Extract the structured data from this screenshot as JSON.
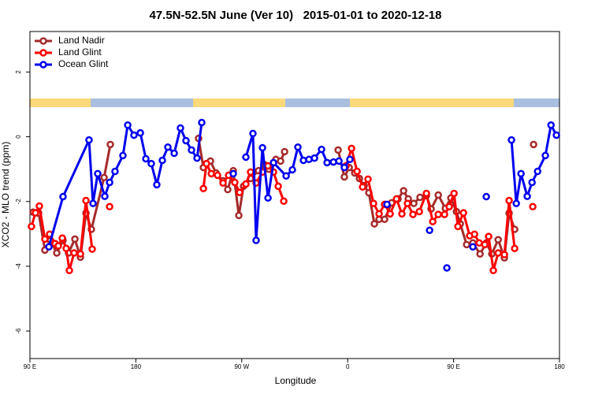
{
  "chart_data": {
    "type": "line",
    "title": "47.5N-52.5N June (Ver 10)   2015-01-01 to 2020-12-18",
    "x_label": "Longitude",
    "y_label": "XCO2 - MLO trend (ppm)",
    "xlim": [
      90,
      540
    ],
    "ylim": [
      -6.85,
      3.25
    ],
    "xticks": [
      {
        "value": 90,
        "label": "90 E"
      },
      180,
      {
        "value": 270,
        "label": "90 W"
      },
      {
        "value": 360,
        "label": "0"
      },
      {
        "value": 450,
        "label": "90 E"
      },
      {
        "value": 540,
        "label": "180"
      }
    ],
    "yticks": [
      -6,
      -4,
      -2,
      0,
      2
    ],
    "legend": "top-left",
    "series": [
      {
        "name": "Land Nadir",
        "color": "#a52a2a",
        "x": [
          92.7,
          97.4,
          102.7,
          107.4,
          112.8,
          118.1,
          122.8,
          128.2,
          132.9,
          137.6,
          142.2,
          153.0,
          158.3,
          null,
          233.3,
          237.4,
          243.4,
          248.1,
          254.1,
          258.1,
          262.8,
          267.5,
          271.5,
          277.5,
          284.2,
          289.6,
          292.9,
          299.0,
          303.0,
          306.4,
          null,
          351.9,
          357.2,
          361.3,
          366.0,
          370.0,
          374.0,
          378.0,
          382.7,
          386.7,
          391.4,
          397.4,
          402.8,
          407.5,
          411.5,
          416.2,
          421.5,
          426.9,
          430.9,
          437.0,
          443.0,
          447.7,
          452.4,
          455.7,
          461.1,
          466.4,
          472.5,
          477.8,
          482.5,
          487.9,
          493.2,
          497.2,
          501.9,
          null,
          518.0
        ],
        "values": [
          -2.33,
          -2.36,
          -3.5,
          -3.2,
          -3.59,
          -3.2,
          -3.59,
          -3.16,
          -3.72,
          -2.36,
          -2.86,
          -1.26,
          -0.24,
          null,
          -0.05,
          -0.95,
          -0.75,
          -1.12,
          -1.36,
          -1.63,
          -1.05,
          -2.43,
          -1.53,
          -1.29,
          -1.05,
          -0.87,
          -1.0,
          -0.7,
          -0.75,
          -0.46,
          null,
          -0.41,
          -1.24,
          -0.95,
          -1.12,
          -1.29,
          -1.51,
          -1.73,
          -2.69,
          -2.55,
          -2.55,
          -2.04,
          -1.92,
          -1.67,
          -1.92,
          -2.06,
          -1.87,
          -1.82,
          -2.23,
          -1.8,
          -2.21,
          -1.89,
          -2.31,
          -2.69,
          -3.33,
          -3.28,
          -3.62,
          -3.28,
          -3.62,
          -3.18,
          -3.74,
          -2.36,
          -2.86,
          null,
          -0.24
        ]
      },
      {
        "name": "Land Glint",
        "color": "#ff0000",
        "x": [
          91.3,
          94.7,
          98.0,
          102.7,
          106.7,
          111.4,
          114.1,
          117.5,
          120.8,
          123.5,
          127.5,
          132.9,
          137.6,
          142.9,
          null,
          157.7,
          null,
          237.4,
          240.0,
          244.1,
          249.4,
          254.1,
          258.8,
          264.1,
          268.2,
          273.5,
          277.5,
          282.2,
          287.6,
          292.3,
          297.0,
          301.0,
          305.7,
          null,
          358.6,
          363.3,
          368.0,
          372.7,
          377.3,
          382.0,
          386.7,
          391.4,
          396.1,
          401.5,
          406.1,
          410.8,
          415.5,
          420.9,
          426.9,
          432.3,
          437.0,
          442.3,
          446.3,
          450.4,
          453.7,
          458.4,
          463.7,
          467.8,
          471.8,
          476.5,
          479.8,
          483.8,
          487.9,
          493.2,
          497.2,
          501.9,
          null,
          517.3
        ],
        "values": [
          -2.77,
          -2.35,
          -2.14,
          -3.16,
          -3.01,
          -3.3,
          -3.37,
          -3.13,
          -3.45,
          -4.13,
          -3.59,
          -3.62,
          -1.97,
          -3.47,
          null,
          -2.16,
          null,
          -1.6,
          -0.83,
          -1.14,
          -1.19,
          -1.43,
          -1.19,
          -1.41,
          -1.72,
          -1.46,
          -1.09,
          -1.43,
          -1.09,
          -0.9,
          -1.09,
          -1.53,
          -1.99,
          null,
          -0.9,
          -0.36,
          -1.07,
          -1.55,
          -1.31,
          -2.06,
          -2.38,
          -2.09,
          -2.38,
          -1.92,
          -2.38,
          -2.06,
          -2.4,
          -2.31,
          -1.75,
          -2.62,
          -2.4,
          -2.4,
          -2.16,
          -1.75,
          -2.77,
          -2.35,
          -3.06,
          -3.01,
          -3.28,
          -3.33,
          -3.08,
          -4.13,
          -3.59,
          -3.64,
          -1.97,
          -3.45,
          null,
          -2.16
        ]
      },
      {
        "name": "Ocean Glint",
        "color": "#0000ee",
        "x": [
          106.1,
          118.1,
          140.2,
          143.6,
          147.6,
          153.6,
          157.7,
          162.3,
          169.0,
          173.1,
          178.4,
          183.8,
          188.5,
          193.1,
          197.8,
          202.5,
          207.2,
          212.6,
          217.9,
          222.6,
          227.3,
          232.0,
          236.0,
          null,
          262.8,
          null,
          273.5,
          279.5,
          282.2,
          287.6,
          292.3,
          297.0,
          307.7,
          313.0,
          317.7,
          322.4,
          327.1,
          331.8,
          337.8,
          342.5,
          347.9,
          352.6,
          357.2,
          361.9,
          null,
          393.4,
          null,
          429.6,
          null,
          444.3,
          null,
          466.4,
          null,
          477.8,
          null,
          499.2,
          503.3,
          507.3,
          512.6,
          516.7,
          521.4,
          528.0,
          532.8,
          537.4
        ],
        "values": [
          -3.4,
          -1.85,
          -0.1,
          -2.06,
          -1.14,
          -1.84,
          -1.41,
          -1.07,
          -0.58,
          0.36,
          0.05,
          0.12,
          -0.68,
          -0.83,
          -1.48,
          -0.73,
          -0.32,
          -0.51,
          0.27,
          -0.12,
          -0.41,
          -0.66,
          0.44,
          null,
          -1.14,
          null,
          -0.63,
          0.1,
          -3.2,
          -0.34,
          -1.89,
          -0.8,
          -1.21,
          -1.02,
          -0.32,
          -0.73,
          -0.7,
          -0.66,
          -0.39,
          -0.8,
          -0.78,
          -0.75,
          -0.95,
          -0.7,
          null,
          -2.09,
          null,
          -2.89,
          null,
          -4.05,
          null,
          -3.4,
          null,
          -1.85,
          null,
          -0.1,
          -2.06,
          -1.14,
          -1.84,
          -1.41,
          -1.07,
          -0.58,
          0.36,
          0.05
        ]
      }
    ]
  }
}
